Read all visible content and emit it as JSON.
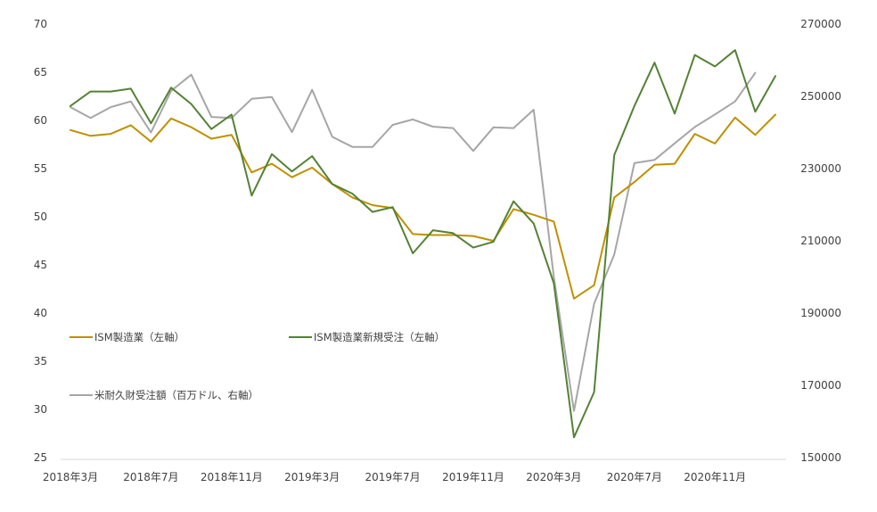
{
  "chart_data": {
    "type": "line",
    "title": "",
    "x": [
      "2018-03",
      "2018-04",
      "2018-05",
      "2018-06",
      "2018-07",
      "2018-08",
      "2018-09",
      "2018-10",
      "2018-11",
      "2018-12",
      "2019-01",
      "2019-02",
      "2019-03",
      "2019-04",
      "2019-05",
      "2019-06",
      "2019-07",
      "2019-08",
      "2019-09",
      "2019-10",
      "2019-11",
      "2019-12",
      "2020-01",
      "2020-02",
      "2020-03",
      "2020-04",
      "2020-05",
      "2020-06",
      "2020-07",
      "2020-08",
      "2020-09",
      "2020-10",
      "2020-11",
      "2020-12",
      "2021-01",
      "2021-02",
      "2021-03"
    ],
    "x_tick_labels": [
      {
        "index": 0,
        "label": "2018年3月"
      },
      {
        "index": 4,
        "label": "2018年7月"
      },
      {
        "index": 8,
        "label": "2018年11月"
      },
      {
        "index": 12,
        "label": "2019年3月"
      },
      {
        "index": 16,
        "label": "2019年7月"
      },
      {
        "index": 20,
        "label": "2019年11月"
      },
      {
        "index": 24,
        "label": "2020年3月"
      },
      {
        "index": 28,
        "label": "2020年7月"
      },
      {
        "index": 32,
        "label": "2020年11月"
      }
    ],
    "y_left": {
      "range": [
        25,
        70
      ],
      "ticks": [
        25,
        30,
        35,
        40,
        45,
        50,
        55,
        60,
        65,
        70
      ]
    },
    "y_right": {
      "range": [
        150000,
        270000
      ],
      "ticks": [
        150000,
        170000,
        190000,
        210000,
        230000,
        250000,
        270000
      ]
    },
    "grid": false,
    "legend_placement": "bottom-left",
    "series": [
      {
        "name": "ISM製造業（左軸）",
        "axis": "left",
        "color": "#BF9000",
        "values": [
          59.0,
          58.4,
          58.6,
          59.5,
          57.8,
          60.2,
          59.3,
          58.1,
          58.5,
          54.6,
          55.5,
          54.1,
          55.1,
          53.4,
          52.0,
          51.2,
          50.9,
          48.2,
          48.1,
          48.1,
          48.0,
          47.5,
          50.8,
          50.2,
          49.5,
          41.5,
          42.9,
          52.0,
          53.6,
          55.4,
          55.5,
          58.6,
          57.6,
          60.3,
          58.5,
          60.6,
          null
        ]
      },
      {
        "name": "ISM製造業新規受注（左軸）",
        "axis": "left",
        "color": "#548235",
        "values": [
          61.5,
          63.0,
          63.0,
          63.3,
          59.7,
          63.4,
          61.7,
          59.1,
          60.6,
          52.2,
          56.5,
          54.7,
          56.3,
          53.4,
          52.4,
          50.5,
          51.0,
          46.2,
          48.6,
          48.3,
          46.8,
          47.4,
          51.6,
          49.3,
          43.1,
          27.1,
          31.8,
          56.4,
          61.5,
          66.0,
          60.7,
          66.8,
          65.6,
          67.3,
          60.9,
          64.6,
          null
        ]
      },
      {
        "name": "米耐久財受注額（百万ドル、右軸）",
        "axis": "right",
        "color": "#A6A6A6",
        "values": [
          247000,
          244000,
          247000,
          248600,
          240000,
          251500,
          256000,
          244300,
          244000,
          249300,
          249800,
          240100,
          251800,
          238800,
          236000,
          236000,
          242100,
          243600,
          241600,
          241200,
          234900,
          241400,
          241200,
          246300,
          200000,
          162900,
          192600,
          206200,
          231500,
          232400,
          237000,
          241500,
          245000,
          248600,
          256500,
          null,
          null
        ]
      }
    ]
  }
}
